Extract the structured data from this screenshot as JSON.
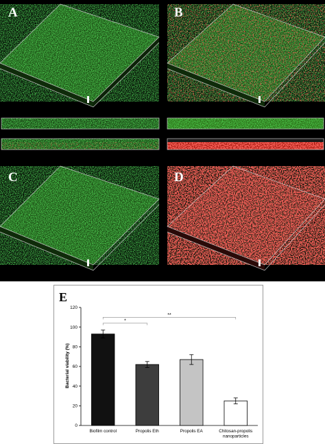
{
  "panels": {
    "a": "A",
    "b": "B",
    "c": "C",
    "d": "D",
    "e": "E"
  },
  "colors": {
    "background_dark": "#000000",
    "live_green": "#33c41e",
    "dead_red": "#e3231c",
    "frame": "#c8c8c8"
  },
  "chart_data": {
    "type": "bar",
    "categories": [
      "Biofilm control",
      "Propolis Eth",
      "Propolis EA",
      "Chitosan-propolis nanoparticles"
    ],
    "category_lines": [
      [
        "Biofilm control"
      ],
      [
        "Propolis Eth"
      ],
      [
        "Propolis EA"
      ],
      [
        "Chitosan-propolis",
        "nanoparticles"
      ]
    ],
    "values": [
      93,
      62,
      67,
      25
    ],
    "errors": [
      4,
      3,
      5,
      3
    ],
    "bar_colors": [
      "#111111",
      "#3d3d3d",
      "#c4c4c4",
      "#ffffff"
    ],
    "ylabel": "Bacterial viability (%)",
    "ylim": [
      0,
      120
    ],
    "yticks": [
      0,
      20,
      40,
      60,
      80,
      100,
      120
    ],
    "grid": false,
    "significance": [
      {
        "from": 0,
        "to": 1,
        "label": "*",
        "y": 104
      },
      {
        "from": 0,
        "to": 3,
        "label": "**",
        "y": 110
      }
    ]
  }
}
